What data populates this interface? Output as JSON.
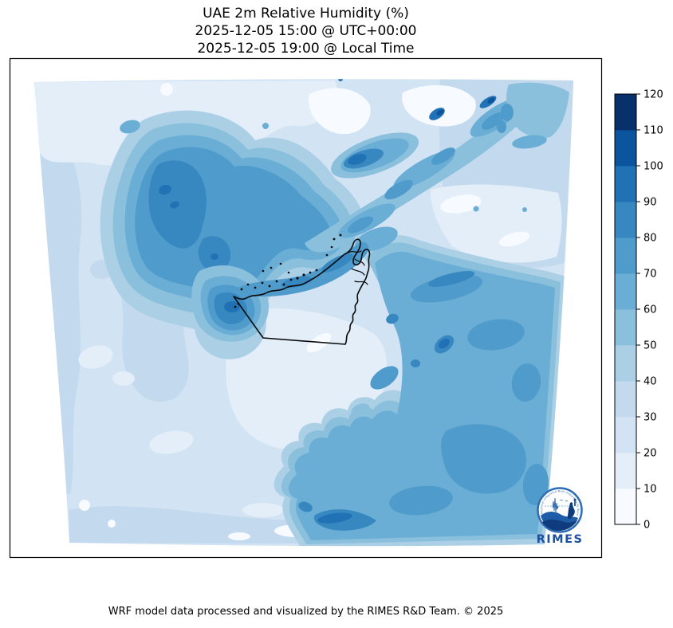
{
  "header": {
    "title_line1": "UAE 2m Relative Humidity (%)",
    "title_line2": "2025-12-05 15:00 @ UTC+00:00",
    "title_line3": "2025-12-05 19:00 @ Local Time"
  },
  "footer": {
    "credit": "WRF model data processed and visualized by the RIMES R&D Team. © 2025"
  },
  "colorbar": {
    "min": 0,
    "max": 120,
    "tick_step": 10,
    "ticks": [
      0,
      10,
      20,
      30,
      40,
      50,
      60,
      70,
      80,
      90,
      100,
      110,
      120
    ],
    "segment_colors_low_to_high": [
      "#f7fbff",
      "#e3eef9",
      "#d2e3f3",
      "#c2d9ee",
      "#abd0e6",
      "#8bc0dd",
      "#6aaed6",
      "#4f9bcb",
      "#3787c0",
      "#2171b5",
      "#0b559f",
      "#08306b"
    ]
  },
  "map": {
    "variable": "2m Relative Humidity (%)",
    "region": "UAE",
    "style": "filled contours (Blues colormap)",
    "outline_color": "#000000"
  },
  "logo": {
    "name": "RIMES",
    "ring_text": "Regional Integrated Multi-Hazard Early Warning System",
    "brand_color": "#1d4f9f"
  }
}
